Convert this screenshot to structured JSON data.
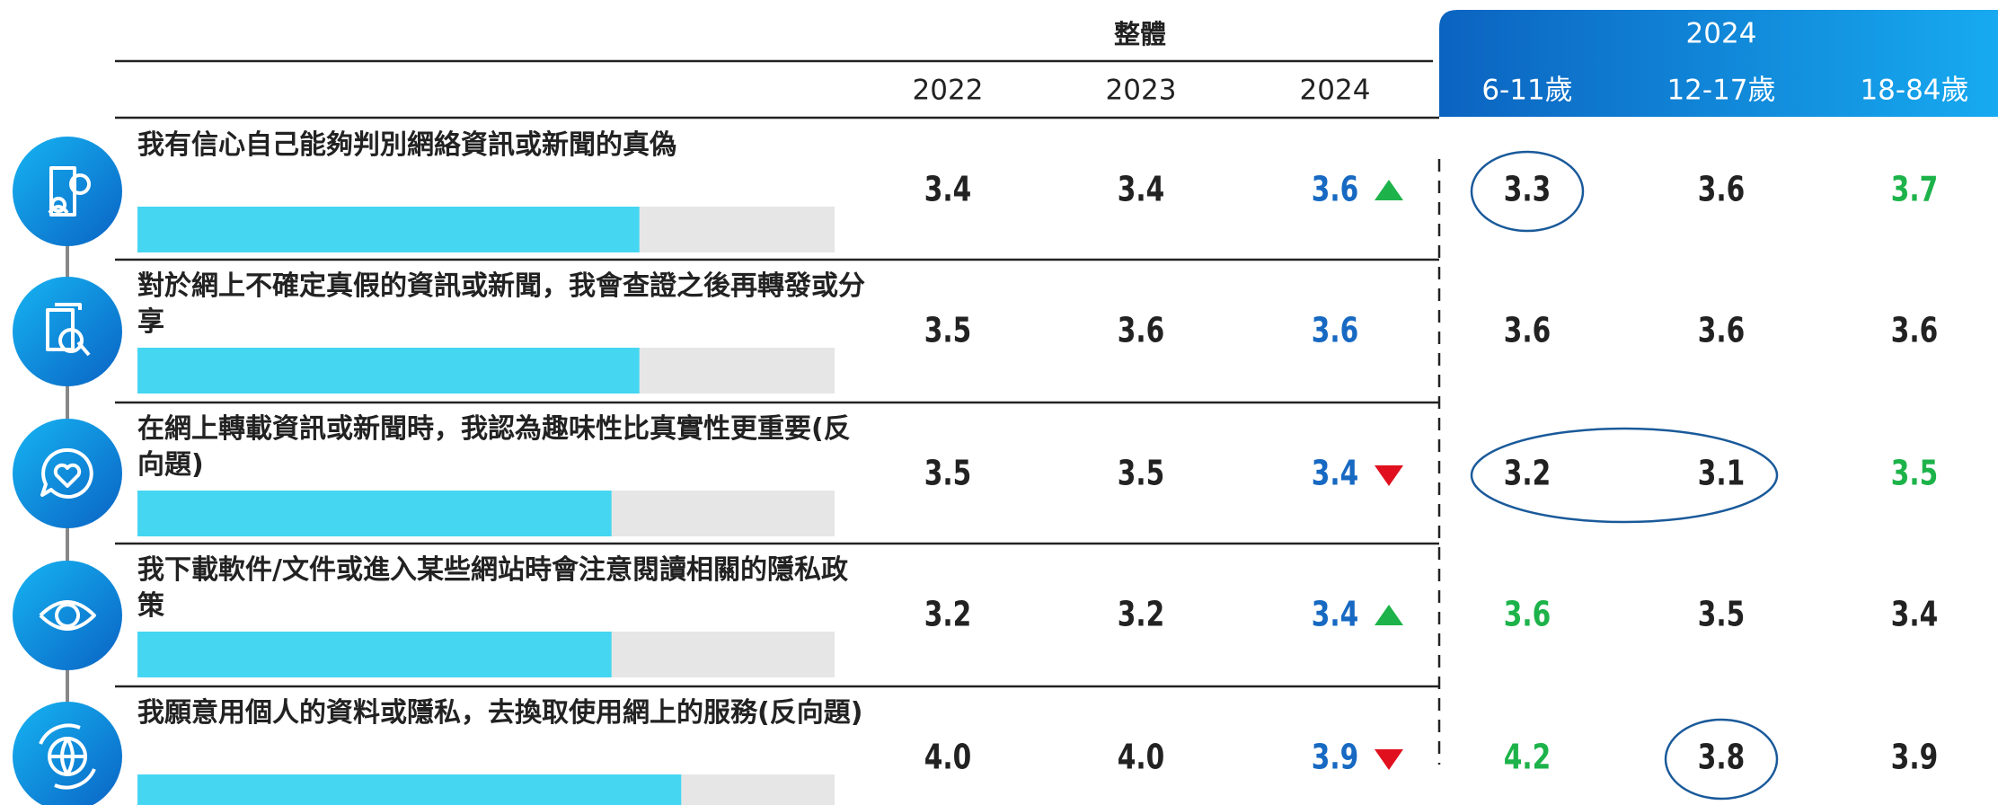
{
  "header": {
    "group_overall": "整體",
    "group_2024": "2024",
    "columns": [
      "2022",
      "2023",
      "2024",
      "6-11歲",
      "12-17歲",
      "18-84歲"
    ]
  },
  "bar_xlim": [
    0,
    5
  ],
  "bar_column": 2,
  "colors": {
    "black": "#222222",
    "blue": "#1769c2",
    "green": "#1db34a",
    "up": "#1db34a",
    "down": "#e0101e",
    "bar": "#45d6f2",
    "track": "#e6e6e6"
  },
  "rows": [
    {
      "label": "我有信心自己能夠判別網絡資訊或新聞的真偽",
      "trend": "up",
      "circled": [
        [
          3,
          3
        ]
      ],
      "cells": [
        {
          "value": "3.4",
          "color": "black"
        },
        {
          "value": "3.4",
          "color": "black"
        },
        {
          "value": "3.6",
          "color": "blue"
        },
        {
          "value": "3.3",
          "color": "black"
        },
        {
          "value": "3.6",
          "color": "black"
        },
        {
          "value": "3.7",
          "color": "green"
        }
      ]
    },
    {
      "label": "對於網上不確定真假的資訊或新聞，我會查證之後再轉發或分享",
      "trend": null,
      "circled": [],
      "cells": [
        {
          "value": "3.5",
          "color": "black"
        },
        {
          "value": "3.6",
          "color": "black"
        },
        {
          "value": "3.6",
          "color": "blue"
        },
        {
          "value": "3.6",
          "color": "black"
        },
        {
          "value": "3.6",
          "color": "black"
        },
        {
          "value": "3.6",
          "color": "black"
        }
      ]
    },
    {
      "label": "在網上轉載資訊或新聞時，我認為趣味性比真實性更重要(反向題)",
      "trend": "down",
      "circled": [
        [
          3,
          4
        ]
      ],
      "cells": [
        {
          "value": "3.5",
          "color": "black"
        },
        {
          "value": "3.5",
          "color": "black"
        },
        {
          "value": "3.4",
          "color": "blue"
        },
        {
          "value": "3.2",
          "color": "black"
        },
        {
          "value": "3.1",
          "color": "black"
        },
        {
          "value": "3.5",
          "color": "green"
        }
      ]
    },
    {
      "label": "我下載軟件/文件或進入某些網站時會注意閱讀相關的隱私政策",
      "trend": "up",
      "circled": [],
      "cells": [
        {
          "value": "3.2",
          "color": "black"
        },
        {
          "value": "3.2",
          "color": "black"
        },
        {
          "value": "3.4",
          "color": "blue"
        },
        {
          "value": "3.6",
          "color": "green"
        },
        {
          "value": "3.5",
          "color": "black"
        },
        {
          "value": "3.4",
          "color": "black"
        }
      ]
    },
    {
      "label": "我願意用個人的資料或隱私，去換取使用網上的服務(反向題)",
      "trend": "down",
      "circled": [
        [
          4,
          4
        ]
      ],
      "cells": [
        {
          "value": "4.0",
          "color": "black"
        },
        {
          "value": "4.0",
          "color": "black"
        },
        {
          "value": "3.9",
          "color": "blue"
        },
        {
          "value": "4.2",
          "color": "green"
        },
        {
          "value": "3.8",
          "color": "black"
        },
        {
          "value": "3.9",
          "color": "black"
        }
      ]
    }
  ]
}
